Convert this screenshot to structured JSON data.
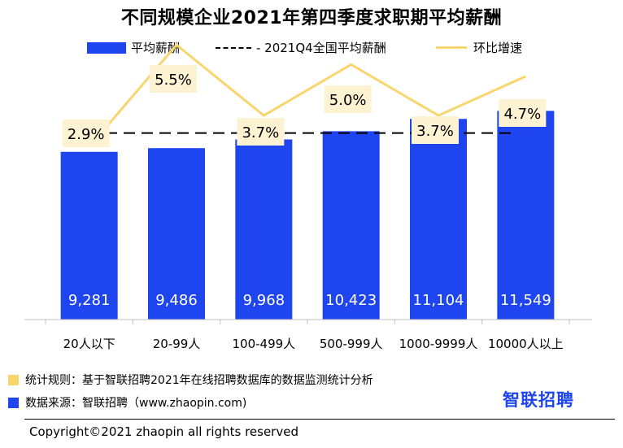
{
  "chart_data": {
    "type": "bar",
    "title": "不同规模企业2021年第四季度求职期平均薪酬",
    "categories": [
      "20人以下",
      "20-99人",
      "100-499人",
      "500-999人",
      "1000-9999人",
      "10000人以上"
    ],
    "series": [
      {
        "name": "平均薪酬",
        "type": "bar",
        "color": "#1f45f0",
        "values": [
          9281,
          9486,
          9968,
          10423,
          11104,
          11549
        ],
        "labels": [
          "9,281",
          "9,486",
          "9,968",
          "10,423",
          "11,104",
          "11,549"
        ]
      },
      {
        "name": "2021Q4全国平均薪酬",
        "type": "reference-line",
        "color": "#000000",
        "style": "dashed",
        "value": 10324
      },
      {
        "name": "环比增速",
        "type": "line",
        "color": "#f9d56e",
        "values": [
          2.9,
          5.5,
          3.7,
          5.0,
          3.7,
          4.7
        ],
        "labels": [
          "2.9%",
          "5.5%",
          "3.7%",
          "5.0%",
          "3.7%",
          "4.7%"
        ]
      }
    ],
    "ylim": [
      0,
      13500
    ],
    "ylim_secondary": [
      -1.5,
      6.5
    ],
    "legend_position": "top",
    "grid": false
  },
  "legend": {
    "bar": "平均薪酬",
    "dash": "- 2021Q4全国平均薪酬",
    "line": "环比增速"
  },
  "footnotes": {
    "rule": "统计规则：基于智联招聘2021年在线招聘数据库的数据监测统计分析",
    "source": "数据来源：智联招聘（www.zhaopin.com)",
    "rule_color": "#f9d56e",
    "source_color": "#1f45f0"
  },
  "brand": "智联招聘",
  "copyright": "Copyright©2021 zhaopin all rights reserved"
}
